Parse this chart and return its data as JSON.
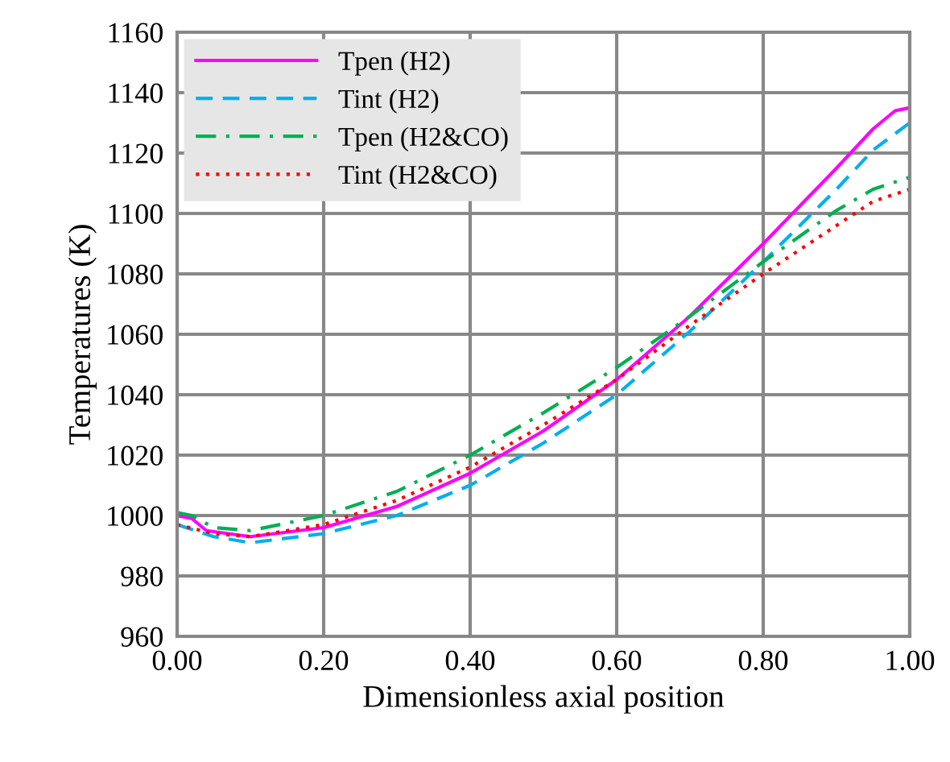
{
  "chart_data": {
    "type": "line",
    "xlabel": "Dimensionless axial position",
    "ylabel": "Temperatures (K)",
    "xlim": [
      0,
      1
    ],
    "ylim": [
      960,
      1160
    ],
    "xticks": [
      {
        "value": 0,
        "label": "0.00"
      },
      {
        "value": 0.2,
        "label": "0.20"
      },
      {
        "value": 0.4,
        "label": "0.40"
      },
      {
        "value": 0.6,
        "label": "0.60"
      },
      {
        "value": 0.8,
        "label": "0.80"
      },
      {
        "value": 1,
        "label": "1.00"
      }
    ],
    "yticks": [
      960,
      980,
      1000,
      1020,
      1040,
      1060,
      1080,
      1100,
      1120,
      1140,
      1160
    ],
    "grid": true,
    "legend": "top left",
    "marker": "none",
    "series": [
      {
        "name": "Tpen (H2)",
        "color": "#ff00ff",
        "line_style": "solid",
        "x": [
          0,
          0.02,
          0.04,
          0.1,
          0.2,
          0.3,
          0.4,
          0.5,
          0.6,
          0.7,
          0.8,
          0.9,
          0.95,
          0.98,
          1.0
        ],
        "values": [
          1000,
          999,
          995,
          993,
          996,
          1003,
          1014,
          1028,
          1045,
          1066,
          1090,
          1115,
          1128,
          1134,
          1135
        ]
      },
      {
        "name": "Tint (H2)",
        "color": "#00b0f0",
        "line_style": "dashed",
        "x": [
          0,
          0.05,
          0.1,
          0.2,
          0.3,
          0.4,
          0.5,
          0.6,
          0.7,
          0.8,
          0.9,
          0.95,
          1.0
        ],
        "values": [
          997,
          993,
          991,
          994,
          1000,
          1010,
          1024,
          1040,
          1061,
          1084,
          1108,
          1121,
          1130
        ]
      },
      {
        "name": "Tpen (H2&CO)",
        "color": "#00b050",
        "line_style": "dashdot",
        "x": [
          0,
          0.02,
          0.05,
          0.1,
          0.2,
          0.3,
          0.4,
          0.5,
          0.6,
          0.7,
          0.8,
          0.9,
          0.95,
          1.0
        ],
        "values": [
          1001,
          1000,
          996,
          995,
          1000,
          1008,
          1020,
          1034,
          1049,
          1066,
          1084,
          1101,
          1108,
          1112
        ]
      },
      {
        "name": "Tint (H2&CO)",
        "color": "#ff0000",
        "line_style": "dotted",
        "x": [
          0,
          0.05,
          0.1,
          0.2,
          0.3,
          0.4,
          0.5,
          0.6,
          0.7,
          0.8,
          0.9,
          0.95,
          1.0
        ],
        "values": [
          997,
          994,
          993,
          997,
          1005,
          1016,
          1030,
          1045,
          1063,
          1080,
          1096,
          1104,
          1108
        ]
      }
    ]
  }
}
